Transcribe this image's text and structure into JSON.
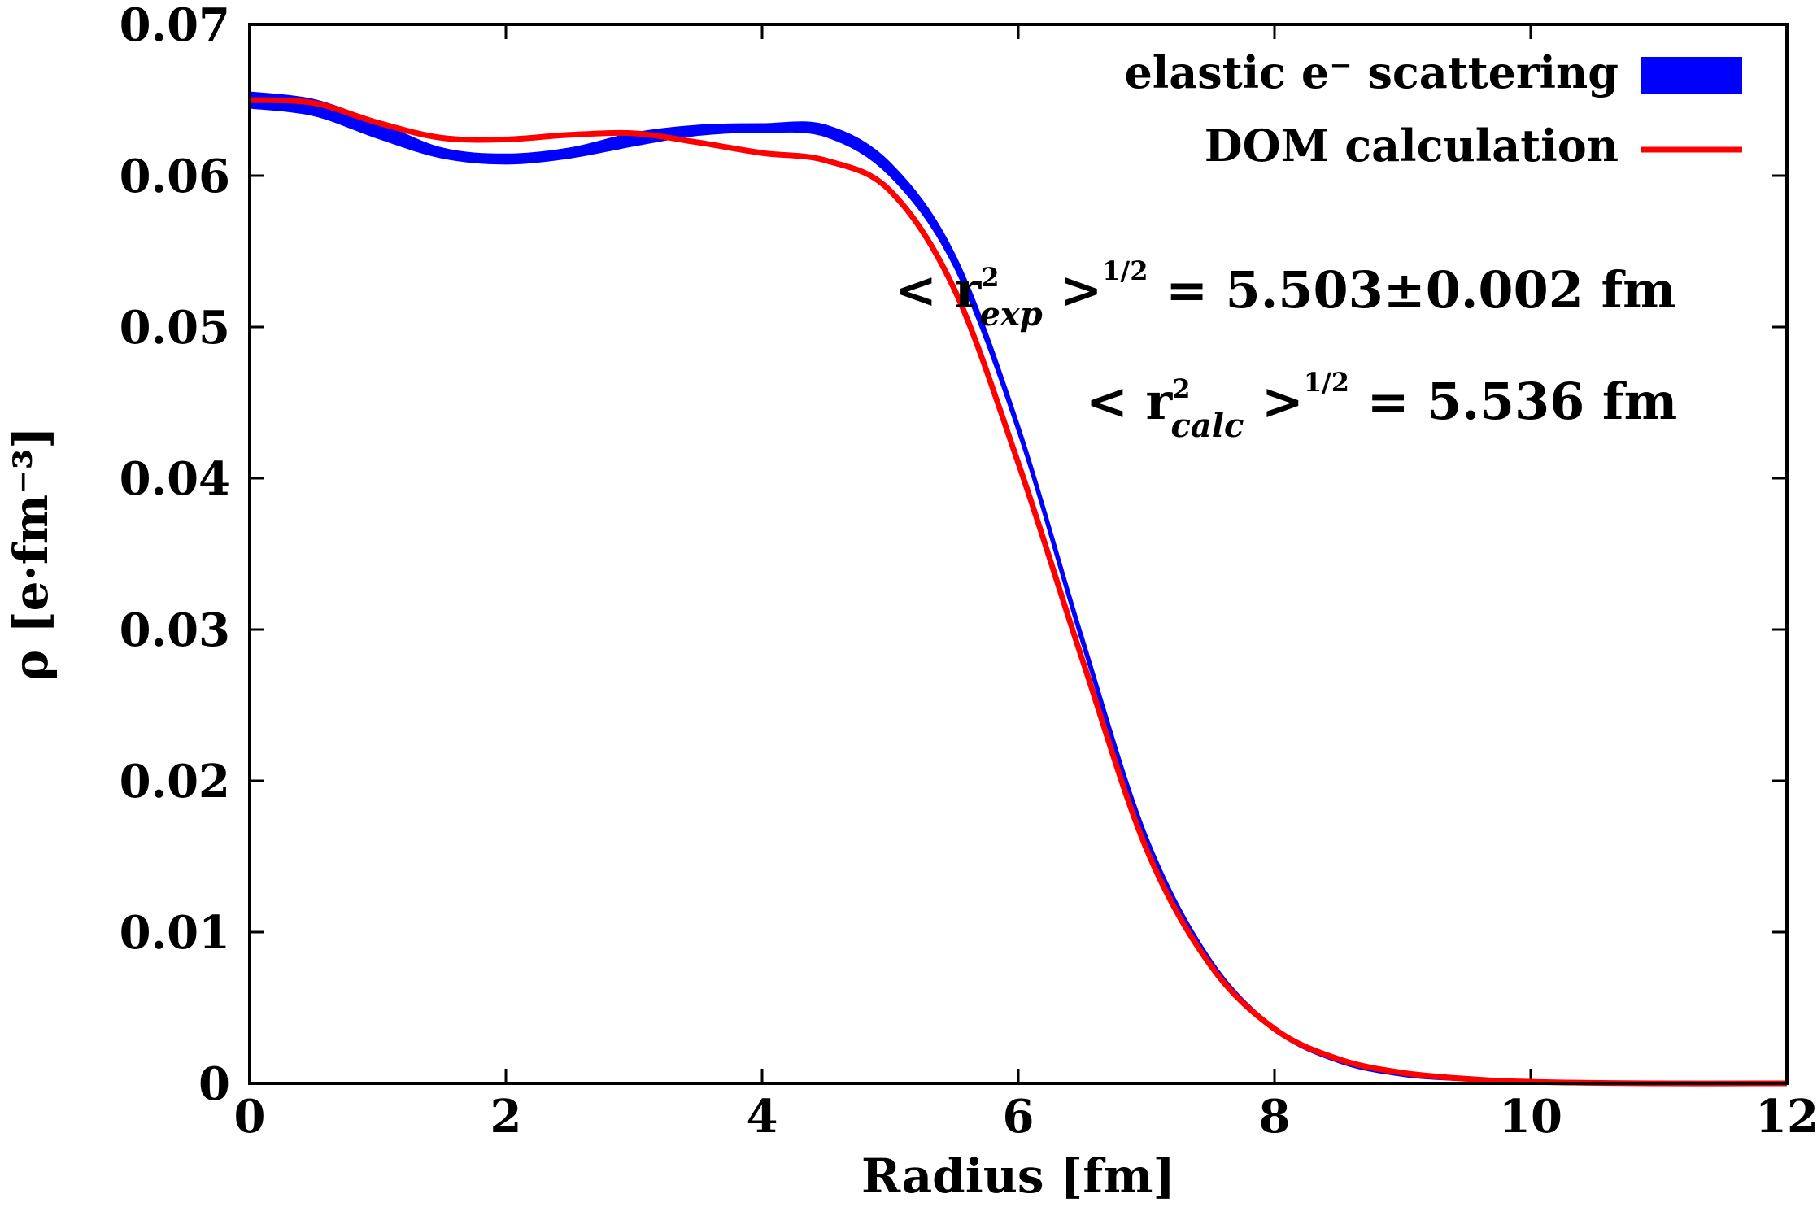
{
  "chart_data": {
    "type": "line",
    "xlabel": "Radius [fm]",
    "ylabel": "ρ [e·fm⁻³]",
    "xlim": [
      0,
      12
    ],
    "ylim": [
      0,
      0.07
    ],
    "xticks": [
      "0",
      "2",
      "4",
      "6",
      "8",
      "10",
      "12"
    ],
    "yticks": [
      "0",
      "0.01",
      "0.02",
      "0.03",
      "0.04",
      "0.05",
      "0.06",
      "0.07"
    ],
    "legend_position": "top-right",
    "grid": false,
    "series": [
      {
        "name": "elastic e⁻ scattering",
        "style": "band",
        "color": "#0000ff",
        "x": [
          0,
          0.5,
          1,
          1.5,
          2,
          2.5,
          3,
          3.5,
          4,
          4.5,
          5,
          5.5,
          6,
          6.5,
          7,
          7.5,
          8,
          8.5,
          9,
          9.5,
          10,
          11,
          12
        ],
        "y_low": [
          0.0645,
          0.064,
          0.0625,
          0.0612,
          0.0608,
          0.0612,
          0.062,
          0.0627,
          0.0629,
          0.0626,
          0.06,
          0.054,
          0.043,
          0.029,
          0.016,
          0.008,
          0.0035,
          0.0014,
          0.0005,
          0.0002,
          0.0001,
          0.0,
          0.0
        ],
        "y_high": [
          0.0655,
          0.065,
          0.0635,
          0.0618,
          0.0614,
          0.0618,
          0.0628,
          0.0633,
          0.0634,
          0.0633,
          0.0608,
          0.0548,
          0.0436,
          0.0296,
          0.0164,
          0.0082,
          0.0037,
          0.0015,
          0.0006,
          0.0002,
          0.0001,
          0.0,
          0.0
        ]
      },
      {
        "name": "DOM calculation",
        "style": "line",
        "color": "#ff0000",
        "x": [
          0,
          0.5,
          1,
          1.5,
          2,
          2.5,
          3,
          3.5,
          4,
          4.5,
          5,
          5.5,
          6,
          6.5,
          7,
          7.5,
          8,
          8.5,
          9,
          9.5,
          10,
          11,
          12
        ],
        "y": [
          0.065,
          0.0648,
          0.0635,
          0.0625,
          0.0624,
          0.0627,
          0.0628,
          0.0622,
          0.0615,
          0.061,
          0.059,
          0.0525,
          0.041,
          0.028,
          0.0155,
          0.0078,
          0.0036,
          0.0016,
          0.0007,
          0.0003,
          0.0001,
          0.0,
          0.0
        ]
      }
    ],
    "annotations": [
      {
        "prefix": "< r",
        "sup": "2",
        "sub": "exp",
        "close": " >",
        "exp": "1/2",
        "rest": " = 5.503±0.002 fm"
      },
      {
        "prefix": "< r",
        "sup": "2",
        "sub": "calc",
        "close": " >",
        "exp": "1/2",
        "rest": " = 5.536 fm"
      }
    ]
  }
}
